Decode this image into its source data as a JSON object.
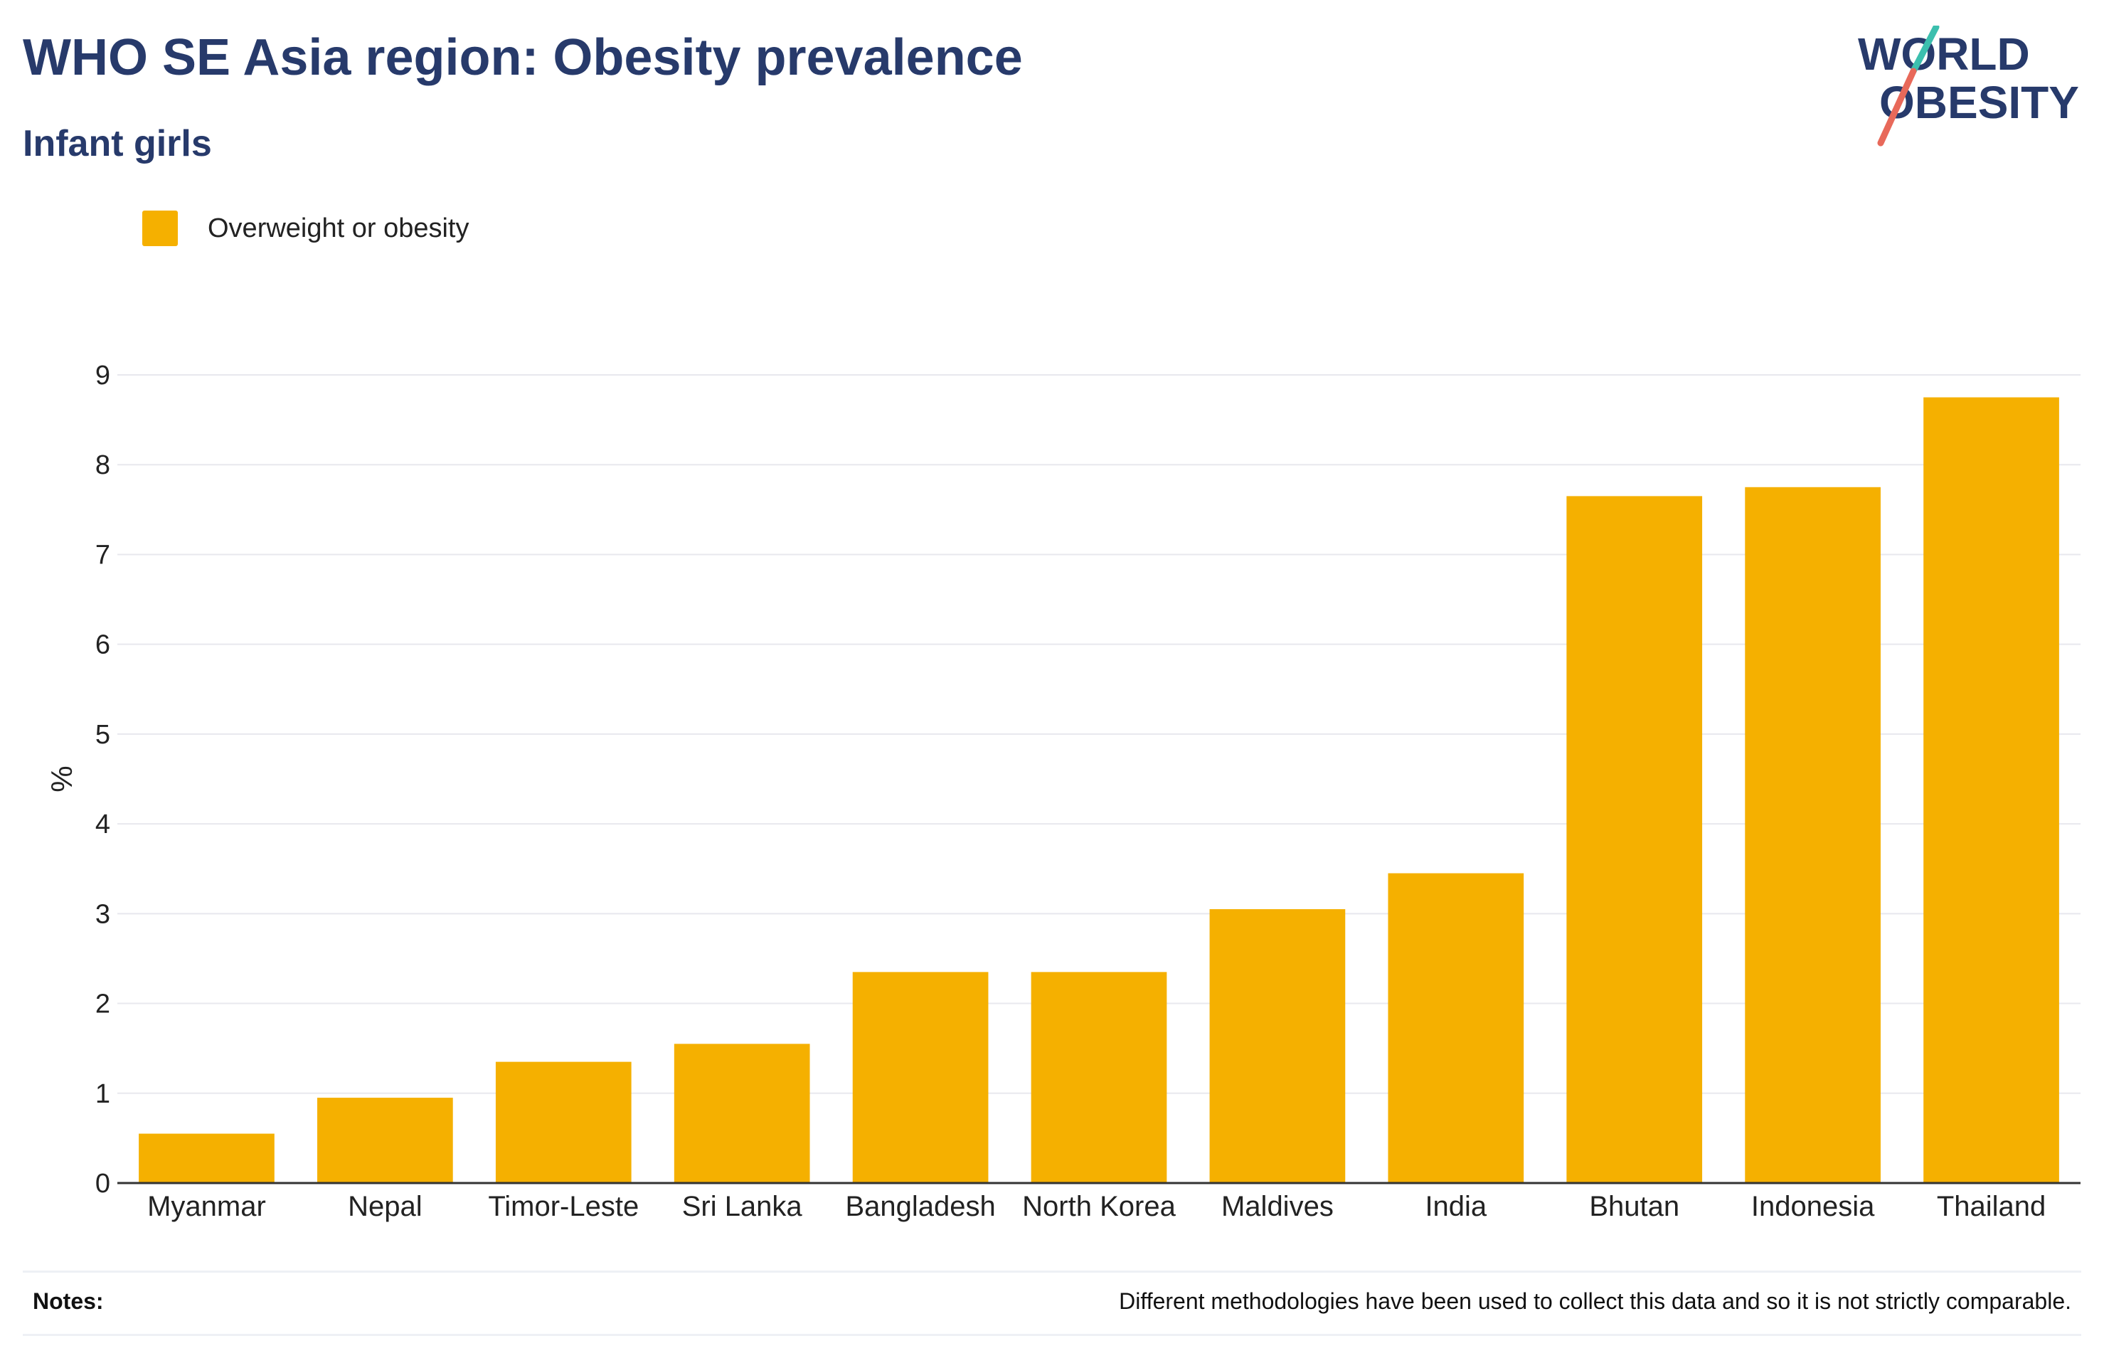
{
  "header": {
    "title": "WHO SE Asia region: Obesity prevalence",
    "subtitle": "Infant girls"
  },
  "logo": {
    "line1": "WORLD",
    "line2": "OBESITY",
    "text_color": "#273a6b",
    "slash_colors": [
      "#3cbfae",
      "#e8695a"
    ]
  },
  "notes": {
    "label": "Notes:",
    "text": "Different methodologies have been used to collect this data and so it is not strictly comparable."
  },
  "chart_data": {
    "type": "bar",
    "title": "WHO SE Asia region: Obesity prevalence",
    "subtitle": "Infant girls",
    "xlabel": "",
    "ylabel": "%",
    "ylim": [
      0,
      9
    ],
    "yticks": [
      0,
      1,
      2,
      3,
      4,
      5,
      6,
      7,
      8,
      9
    ],
    "grid": true,
    "legend_position": "top-left",
    "categories": [
      "Myanmar",
      "Nepal",
      "Timor-Leste",
      "Sri Lanka",
      "Bangladesh",
      "North Korea",
      "Maldives",
      "India",
      "Bhutan",
      "Indonesia",
      "Thailand"
    ],
    "series": [
      {
        "name": "Overweight or obesity",
        "color": "#f5b000",
        "values": [
          0.55,
          0.95,
          1.35,
          1.55,
          2.35,
          2.35,
          3.05,
          3.45,
          7.65,
          7.75,
          8.75
        ]
      }
    ]
  }
}
